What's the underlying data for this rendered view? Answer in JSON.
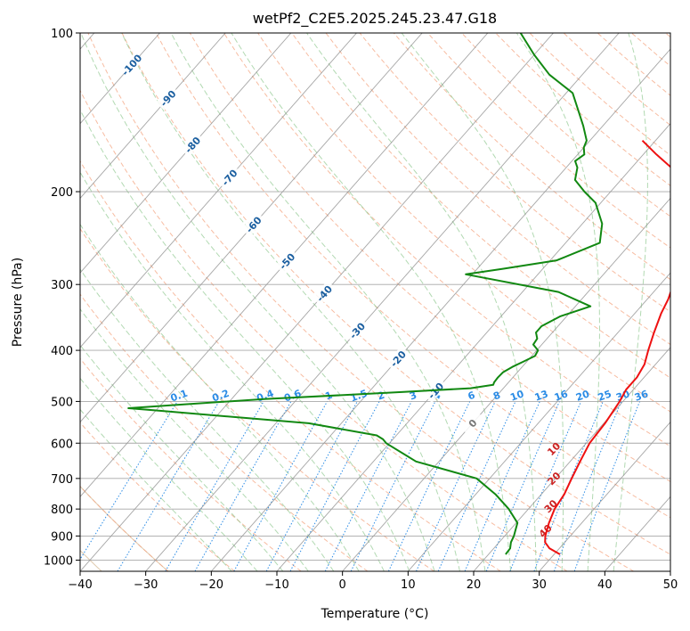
{
  "chart_data": {
    "type": "skewt",
    "title": "wetPf2_C2E5.2025.245.23.47.G18",
    "xlabel": "Temperature (°C)",
    "ylabel": "Pressure (hPa)",
    "xlim": [
      -40,
      50
    ],
    "ylim": [
      1050,
      100
    ],
    "x_ticks": [
      -40,
      -30,
      -20,
      -10,
      0,
      10,
      20,
      30,
      40,
      50
    ],
    "x_tick_labels": [
      "−40",
      "−30",
      "−20",
      "−10",
      "0",
      "10",
      "20",
      "30",
      "40",
      "50"
    ],
    "y_ticks": [
      100,
      200,
      300,
      400,
      500,
      600,
      700,
      800,
      900,
      1000
    ],
    "y_tick_labels": [
      "100",
      "200",
      "300",
      "400",
      "500",
      "600",
      "700",
      "800",
      "900",
      "1000"
    ],
    "grid": true,
    "colors": {
      "temperature": "#ee1111",
      "dewpoint": "#118811",
      "isotherm": "#888888",
      "dry_adiabat": "#f4a582",
      "moist_adiabat": "#88c488",
      "mixing_ratio": "#2b8ce6",
      "isentrope": "#d2b48c",
      "isotherm_label": "#1b5fa0",
      "mixing_label": "#2b8ce6",
      "moist_label": "#cc2222"
    },
    "series": [
      {
        "name": "Temperature",
        "points": [
          [
            30.9,
            975
          ],
          [
            28.5,
            950
          ],
          [
            27,
            925
          ],
          [
            26.2,
            900
          ],
          [
            25,
            850
          ],
          [
            24,
            800
          ],
          [
            23.5,
            750
          ],
          [
            22.5,
            700
          ],
          [
            21.5,
            650
          ],
          [
            20.5,
            600
          ],
          [
            20.2,
            550
          ],
          [
            19.5,
            500
          ],
          [
            18.9,
            475
          ],
          [
            18.9,
            450
          ],
          [
            18.3,
            425
          ],
          [
            17,
            400
          ],
          [
            15.5,
            370
          ],
          [
            14,
            340
          ],
          [
            13.2,
            320
          ],
          [
            12,
            300
          ],
          [
            8,
            250
          ],
          [
            4,
            220
          ],
          [
            1.8,
            200
          ],
          [
            -4,
            180
          ],
          [
            -8,
            170
          ],
          [
            -12,
            160
          ]
        ]
      },
      {
        "name": "Dewpoint",
        "points": [
          [
            22.6,
            975
          ],
          [
            22.5,
            950
          ],
          [
            21.8,
            925
          ],
          [
            21.4,
            900
          ],
          [
            20.2,
            850
          ],
          [
            17,
            800
          ],
          [
            13,
            750
          ],
          [
            8,
            700
          ],
          [
            -3.5,
            650
          ],
          [
            -10.5,
            600
          ],
          [
            -11.5,
            590
          ],
          [
            -13,
            580
          ],
          [
            -25,
            550
          ],
          [
            -50,
            520
          ],
          [
            -54.5,
            515
          ],
          [
            -48,
            508
          ],
          [
            -35,
            495
          ],
          [
            -15,
            480
          ],
          [
            -5,
            472
          ],
          [
            -2,
            465
          ],
          [
            -2.2,
            460
          ],
          [
            -2.3,
            450
          ],
          [
            -2.2,
            440
          ],
          [
            -1.5,
            430
          ],
          [
            -0.5,
            420
          ],
          [
            0.5,
            410
          ],
          [
            0.2,
            400
          ],
          [
            -1.3,
            390
          ],
          [
            -1.5,
            380
          ],
          [
            -2.5,
            370
          ],
          [
            -2.5,
            360
          ],
          [
            -1,
            345
          ],
          [
            2.3,
            330
          ],
          [
            -4.5,
            310
          ],
          [
            -21,
            287
          ],
          [
            -16,
            280
          ],
          [
            -9,
            270
          ],
          [
            -4.8,
            250
          ],
          [
            -7,
            230
          ],
          [
            -10.8,
            210
          ],
          [
            -14,
            200
          ],
          [
            -17,
            190
          ],
          [
            -18.3,
            180
          ],
          [
            -19.5,
            175
          ],
          [
            -19,
            170
          ],
          [
            -20,
            165
          ],
          [
            -20.5,
            160
          ],
          [
            -23,
            150
          ],
          [
            -29,
            130
          ],
          [
            -35,
            120
          ],
          [
            -40,
            110
          ],
          [
            -45,
            100
          ]
        ]
      }
    ],
    "isotherm_labels": [
      "-100",
      "-90",
      "-80",
      "-70",
      "-60",
      "-50",
      "-40",
      "-30",
      "-20",
      "-10",
      "0"
    ],
    "isotherm_label_values": [
      -100,
      -90,
      -80,
      -70,
      -60,
      -50,
      -40,
      -30,
      -20,
      -10,
      0
    ],
    "isotherm_label_pressures": [
      115,
      133,
      163,
      188,
      231,
      271,
      312,
      367,
      415,
      477,
      550
    ],
    "mixing_ratio_labels": [
      "0.1",
      "0.2",
      "0.4",
      "0.6",
      "1",
      "1.5",
      "2",
      "3",
      "4",
      "6",
      "8",
      "10",
      "13",
      "16",
      "20",
      "25",
      "30",
      "36"
    ],
    "mixing_ratio_values": [
      0.1,
      0.2,
      0.4,
      0.6,
      1,
      1.5,
      2,
      3,
      4,
      6,
      8,
      10,
      13,
      16,
      20,
      25,
      30,
      36
    ],
    "moist_adiabat_labels": [
      "10",
      "20",
      "30",
      "40"
    ],
    "moist_adiabat_label_positions": [
      [
        15.8,
        615
      ],
      [
        19.8,
        700
      ],
      [
        23,
        790
      ],
      [
        25.5,
        880
      ]
    ]
  }
}
